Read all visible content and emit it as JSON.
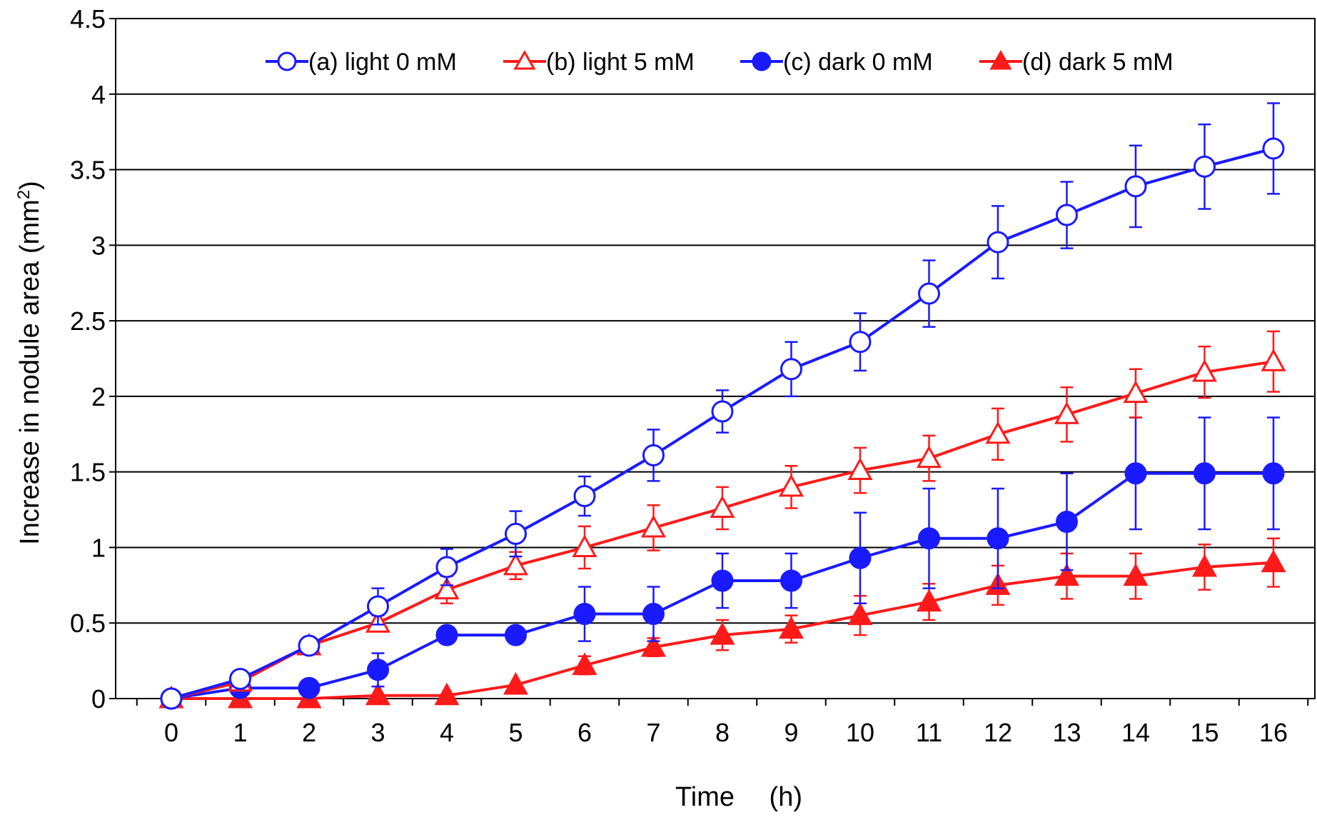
{
  "chart_data": {
    "type": "line",
    "title": "",
    "xlabel": "Time　 (h)",
    "ylabel_main": "Increase in nodule area (mm",
    "ylabel_sup": "2",
    "ylabel_close": ")",
    "xlim": [
      0,
      16
    ],
    "ylim": [
      0,
      4.5
    ],
    "x": [
      0,
      1,
      2,
      3,
      4,
      5,
      6,
      7,
      8,
      9,
      10,
      11,
      12,
      13,
      14,
      15,
      16
    ],
    "x_tick_labels": [
      "0",
      "1",
      "2",
      "3",
      "4",
      "5",
      "6",
      "7",
      "8",
      "9",
      "10",
      "11",
      "12",
      "13",
      "14",
      "15",
      "16"
    ],
    "y_ticks": [
      0,
      0.5,
      1,
      1.5,
      2,
      2.5,
      3,
      3.5,
      4,
      4.5
    ],
    "y_tick_labels": [
      "0",
      "0.5",
      "1",
      "1.5",
      "2",
      "2.5",
      "3",
      "3.5",
      "4",
      "4.5"
    ],
    "grid": "horizontal",
    "legend_position": "top",
    "series": [
      {
        "name": "(a) light 0 mM",
        "color": "#1a1aff",
        "marker": "open-circle",
        "values": [
          0.0,
          0.13,
          0.35,
          0.61,
          0.87,
          1.09,
          1.34,
          1.61,
          1.9,
          2.18,
          2.36,
          2.68,
          3.02,
          3.2,
          3.39,
          3.52,
          3.64
        ],
        "errors": [
          0.0,
          0.03,
          0.05,
          0.12,
          0.12,
          0.15,
          0.13,
          0.17,
          0.14,
          0.18,
          0.19,
          0.22,
          0.24,
          0.22,
          0.27,
          0.28,
          0.3
        ]
      },
      {
        "name": "(b) light 5 mM",
        "color": "#ff1a1a",
        "marker": "open-triangle",
        "values": [
          0.0,
          0.11,
          0.35,
          0.5,
          0.72,
          0.88,
          1.0,
          1.13,
          1.26,
          1.4,
          1.51,
          1.59,
          1.75,
          1.88,
          2.02,
          2.16,
          2.23
        ],
        "errors": [
          0.0,
          0.02,
          0.03,
          0.05,
          0.09,
          0.09,
          0.14,
          0.15,
          0.14,
          0.14,
          0.15,
          0.15,
          0.17,
          0.18,
          0.16,
          0.17,
          0.2
        ]
      },
      {
        "name": "(c) dark 0 mM",
        "color": "#1a1aff",
        "marker": "filled-circle",
        "values": [
          0.0,
          0.07,
          0.07,
          0.19,
          0.42,
          0.42,
          0.56,
          0.56,
          0.78,
          0.78,
          0.93,
          1.06,
          1.06,
          1.17,
          1.49,
          1.49,
          1.49
        ],
        "errors": [
          0.0,
          0.0,
          0.0,
          0.11,
          0.0,
          0.0,
          0.18,
          0.18,
          0.18,
          0.18,
          0.3,
          0.33,
          0.33,
          0.32,
          0.37,
          0.37,
          0.37
        ]
      },
      {
        "name": "(d) dark 5 mM",
        "color": "#ff1a1a",
        "marker": "filled-triangle",
        "values": [
          0.0,
          0.0,
          0.0,
          0.02,
          0.02,
          0.09,
          0.22,
          0.34,
          0.42,
          0.46,
          0.55,
          0.64,
          0.75,
          0.81,
          0.81,
          0.87,
          0.9
        ],
        "errors": [
          0.0,
          0.0,
          0.0,
          0.0,
          0.0,
          0.0,
          0.06,
          0.06,
          0.1,
          0.09,
          0.13,
          0.12,
          0.13,
          0.15,
          0.15,
          0.15,
          0.16
        ]
      }
    ]
  }
}
